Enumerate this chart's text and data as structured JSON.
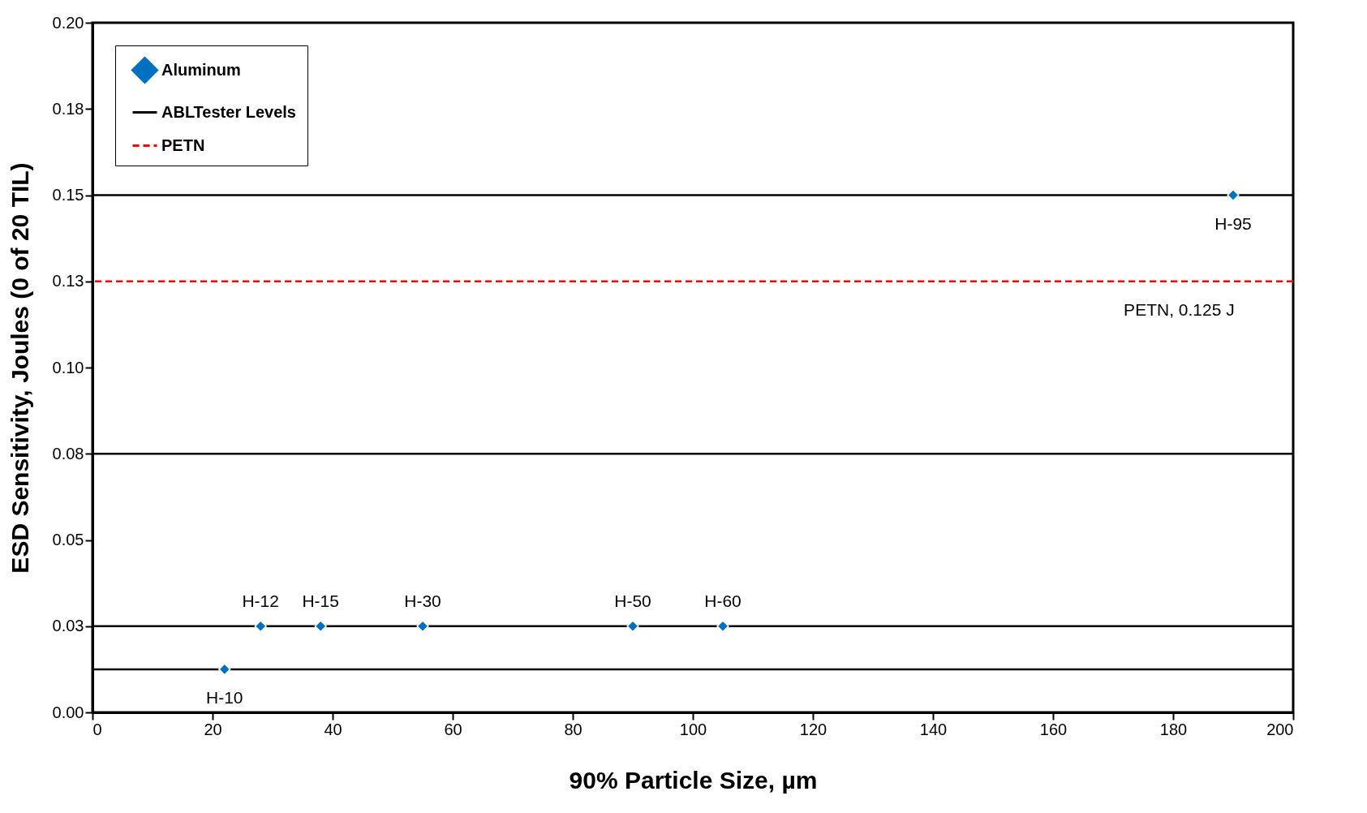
{
  "chart_data": {
    "type": "scatter",
    "xlabel": "90% Particle Size, µm",
    "ylabel": "ESD Sensitivity, Joules (0 of 20 TIL)",
    "series": [
      {
        "name": "Aluminum",
        "color": "#0070c0",
        "x": [
          22,
          28,
          38,
          55,
          90,
          105,
          190
        ],
        "values": [
          0.0125,
          0.025,
          0.025,
          0.025,
          0.025,
          0.025,
          0.15
        ]
      }
    ],
    "marker": "diamond",
    "ref_lines": [
      {
        "axis": "y",
        "value": 0.0125,
        "label": "ABLTester Levels",
        "color": "#000000",
        "line_style": "solid"
      },
      {
        "axis": "y",
        "value": 0.025,
        "color": "#000000",
        "line_style": "solid"
      },
      {
        "axis": "y",
        "value": 0.075,
        "color": "#000000",
        "line_style": "solid"
      },
      {
        "axis": "y",
        "value": 0.15,
        "color": "#000000",
        "line_style": "solid"
      },
      {
        "axis": "y",
        "value": 0.125,
        "label": "PETN",
        "color": "#ff0000",
        "line_style": "dashed"
      }
    ],
    "annotations": [
      {
        "text": "H-10",
        "x": 22,
        "y": 0.0125
      },
      {
        "text": "H-12",
        "x": 28,
        "y": 0.025
      },
      {
        "text": "H-15",
        "x": 38,
        "y": 0.025
      },
      {
        "text": "H-30",
        "x": 55,
        "y": 0.025
      },
      {
        "text": "H-50",
        "x": 90,
        "y": 0.025
      },
      {
        "text": "H-60",
        "x": 105,
        "y": 0.025
      },
      {
        "text": "H-95",
        "x": 190,
        "y": 0.15
      },
      {
        "text": "PETN, 0.125 J",
        "x": 181,
        "y": 0.125
      }
    ],
    "xlim": [
      0,
      200
    ],
    "xticks": [
      0,
      20,
      40,
      60,
      80,
      100,
      120,
      140,
      160,
      180,
      200
    ],
    "ylim": [
      0,
      0.2
    ],
    "yticks": [
      {
        "value": 0,
        "label": "0.00"
      },
      {
        "value": 0.025,
        "label": "0.03"
      },
      {
        "value": 0.05,
        "label": "0.05"
      },
      {
        "value": 0.075,
        "label": "0.08"
      },
      {
        "value": 0.1,
        "label": "0.10"
      },
      {
        "value": 0.125,
        "label": "0.13"
      },
      {
        "value": 0.15,
        "label": "0.15"
      },
      {
        "value": 0.175,
        "label": "0.18"
      },
      {
        "value": 0.2,
        "label": "0.20"
      }
    ],
    "grid": false,
    "legend": "top left"
  }
}
